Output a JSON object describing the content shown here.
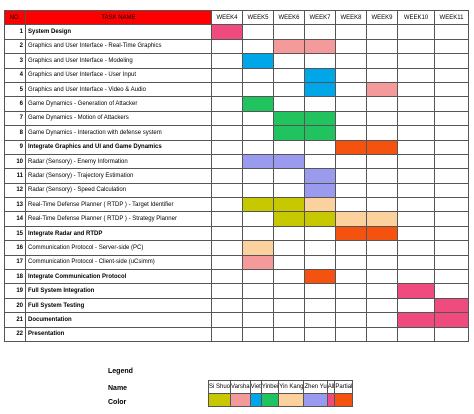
{
  "table": {
    "header_no": "NO.",
    "header_task": "TASK NAME",
    "weeks": [
      "WEEK4",
      "WEEK5",
      "WEEK6",
      "WEEK7",
      "WEEK8",
      "WEEK9",
      "WEEK10",
      "WEEK11"
    ],
    "rows": [
      {
        "no": "1",
        "name": "System Design",
        "bold": true,
        "cells": [
          "pink",
          "",
          "",
          "",
          "",
          "",
          "",
          ""
        ]
      },
      {
        "no": "2",
        "name": "Graphics and User Interface - Real-Time Graphics",
        "bold": false,
        "cells": [
          "",
          "",
          "salmon",
          "salmon",
          "",
          "",
          "",
          ""
        ]
      },
      {
        "no": "3",
        "name": "Graphics and User Interface - Modeling",
        "bold": false,
        "cells": [
          "",
          "blue",
          "",
          "",
          "",
          "",
          "",
          ""
        ]
      },
      {
        "no": "4",
        "name": "Graphics and User Interface - User Input",
        "bold": false,
        "cells": [
          "",
          "",
          "",
          "blue",
          "",
          "",
          "",
          ""
        ]
      },
      {
        "no": "5",
        "name": "Graphics and User Interface - Video & Audio",
        "bold": false,
        "cells": [
          "",
          "",
          "",
          "blue",
          "",
          "salmon",
          "",
          ""
        ]
      },
      {
        "no": "6",
        "name": "Game Dynamics - Generation of Attacker",
        "bold": false,
        "cells": [
          "",
          "green",
          "",
          "",
          "",
          "",
          "",
          ""
        ]
      },
      {
        "no": "7",
        "name": "Game Dynamics - Motion of Attackers",
        "bold": false,
        "cells": [
          "",
          "",
          "green",
          "green",
          "",
          "",
          "",
          ""
        ]
      },
      {
        "no": "8",
        "name": "Game Dynamics - Interaction with defense system",
        "bold": false,
        "cells": [
          "",
          "",
          "green",
          "green",
          "",
          "",
          "",
          ""
        ]
      },
      {
        "no": "9",
        "name": "Integrate Graphics and UI and Game Dynamics",
        "bold": true,
        "cells": [
          "",
          "",
          "",
          "",
          "orange",
          "orange",
          "",
          ""
        ]
      },
      {
        "no": "10",
        "name": "Radar (Sensory) - Enemy Information",
        "bold": false,
        "cells": [
          "",
          "lavender",
          "lavender",
          "",
          "",
          "",
          "",
          ""
        ]
      },
      {
        "no": "11",
        "name": "Radar (Sensory) - Trajectory Estimation",
        "bold": false,
        "cells": [
          "",
          "",
          "",
          "lavender",
          "",
          "",
          "",
          ""
        ]
      },
      {
        "no": "12",
        "name": "Radar (Sensory) - Speed Calculation",
        "bold": false,
        "cells": [
          "",
          "",
          "",
          "lavender",
          "",
          "",
          "",
          ""
        ]
      },
      {
        "no": "13",
        "name": "Real-Time Defense Planner ( RTDP ) - Target Identifier",
        "bold": false,
        "cells": [
          "",
          "olive",
          "olive",
          "peach",
          "",
          "",
          "",
          ""
        ]
      },
      {
        "no": "14",
        "name": "Real-Time Defense Planner ( RTDP ) - Strategy Planner",
        "bold": false,
        "cells": [
          "",
          "",
          "olive",
          "olive",
          "peach",
          "peach",
          "",
          ""
        ]
      },
      {
        "no": "15",
        "name": "Integrate Radar and RTDP",
        "bold": true,
        "cells": [
          "",
          "",
          "",
          "",
          "orange",
          "orange",
          "",
          ""
        ]
      },
      {
        "no": "16",
        "name": "Communication Protocol - Server-side (PC)",
        "bold": false,
        "cells": [
          "",
          "peach",
          "",
          "",
          "",
          "",
          "",
          ""
        ]
      },
      {
        "no": "17",
        "name": "Communication Protocol - Client-side (uCsimm)",
        "bold": false,
        "cells": [
          "",
          "salmon",
          "",
          "",
          "",
          "",
          "",
          ""
        ]
      },
      {
        "no": "18",
        "name": "Integrate Communication Protocol",
        "bold": true,
        "cells": [
          "",
          "",
          "",
          "orange",
          "",
          "",
          "",
          ""
        ]
      },
      {
        "no": "19",
        "name": "Full System Integration",
        "bold": true,
        "cells": [
          "",
          "",
          "",
          "",
          "",
          "",
          "pink",
          ""
        ]
      },
      {
        "no": "20",
        "name": "Full System Testing",
        "bold": true,
        "cells": [
          "",
          "",
          "",
          "",
          "",
          "",
          "",
          "pink"
        ]
      },
      {
        "no": "21",
        "name": "Documentation",
        "bold": true,
        "cells": [
          "",
          "",
          "",
          "",
          "",
          "",
          "pink",
          "pink"
        ]
      },
      {
        "no": "22",
        "name": "Presentation",
        "bold": true,
        "cells": [
          "",
          "",
          "",
          "",
          "",
          "",
          "",
          ""
        ]
      }
    ]
  },
  "legend": {
    "title": "Legend",
    "name_label": "Name",
    "color_label": "Color",
    "entries": [
      {
        "name": "Si Shuo",
        "color": "olive"
      },
      {
        "name": "Varsha",
        "color": "salmon"
      },
      {
        "name": "Viet",
        "color": "blue"
      },
      {
        "name": "Yinbei",
        "color": "green"
      },
      {
        "name": "Yin Kang",
        "color": "peach"
      },
      {
        "name": "Zhen Yu",
        "color": "lavender"
      },
      {
        "name": "All",
        "color": "pink"
      },
      {
        "name": "Partial",
        "color": "orange"
      }
    ]
  },
  "colors": {
    "olive": "#c8c800",
    "salmon": "#f59a9a",
    "blue": "#00a7e8",
    "green": "#21c35f",
    "peach": "#fbd29e",
    "lavender": "#9a9aef",
    "pink": "#f04b7e",
    "orange": "#f5520f",
    "header_red": "#ff0000"
  }
}
